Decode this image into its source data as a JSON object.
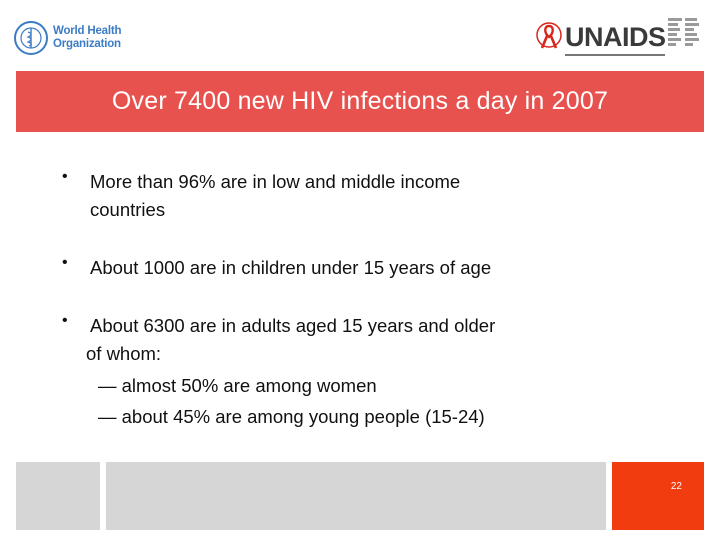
{
  "header": {
    "who_logo_text": [
      "World Health",
      "Organization"
    ],
    "unaids_logo_text": "UNAIDS"
  },
  "title": "Over 7400 new HIV infections a day in 2007",
  "bullets": [
    {
      "lines": [
        "More than 96% are in low and middle income",
        "countries"
      ]
    },
    {
      "lines": [
        "About 1000 are in children under 15 years of age"
      ]
    },
    {
      "lines": [
        "About 6300 are in adults aged 15 years and older",
        "of whom:"
      ]
    }
  ],
  "sub_items": [
    "— almost 50% are among women",
    "— about 45% are among young people (15-24)"
  ],
  "footer": {
    "page_number": "22"
  },
  "colors": {
    "title_band": "#e8524e",
    "page_box": "#f03c0f",
    "footer_grey": "#d6d6d6",
    "who_blue": "#3b7cc4",
    "unaids_red": "#d9261c"
  }
}
